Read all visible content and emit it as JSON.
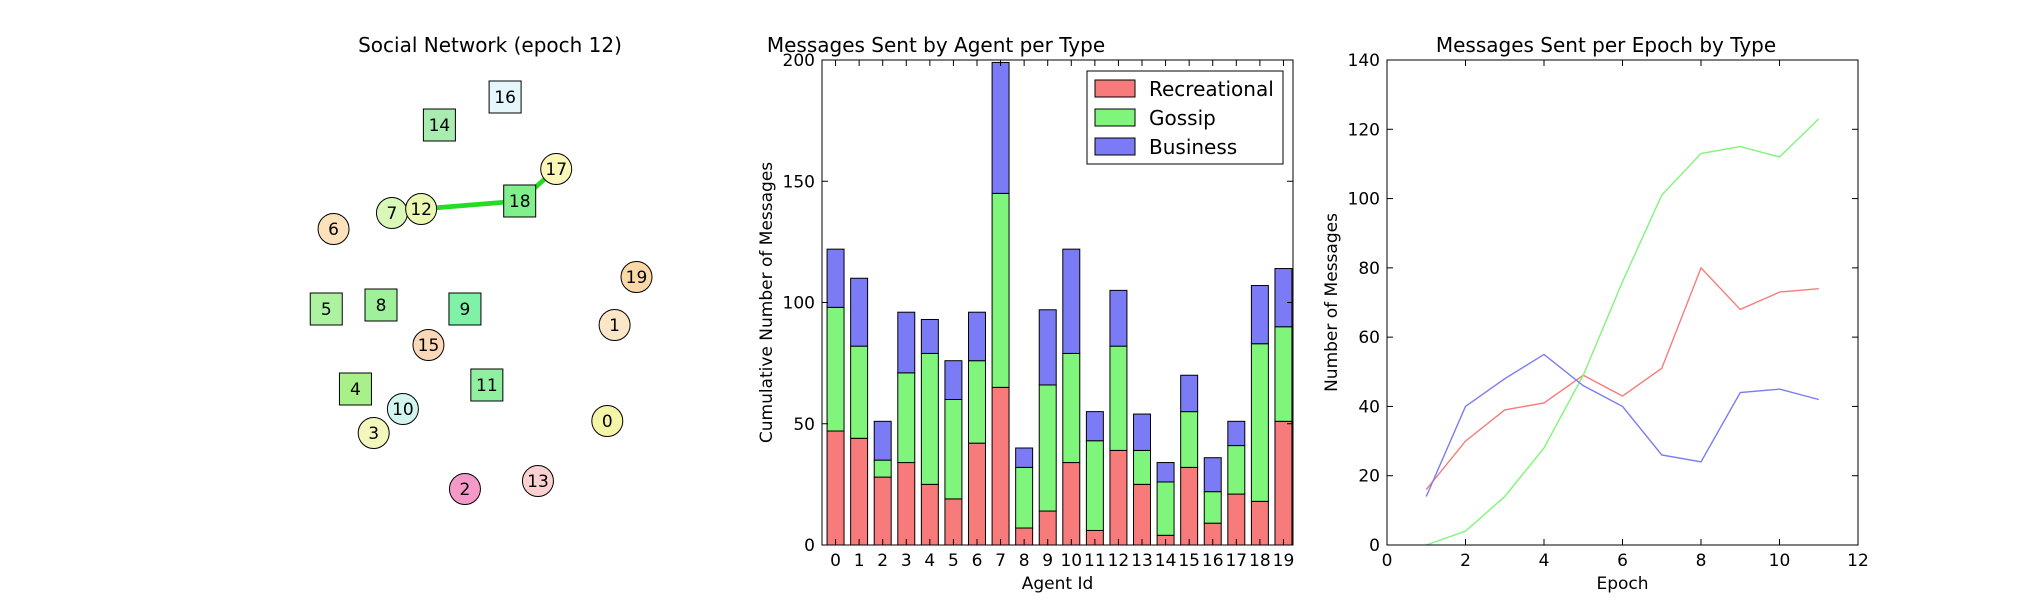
{
  "chart_data": [
    {
      "type": "network",
      "title": "Social Network (epoch 12)",
      "nodes": [
        {
          "id": 0,
          "label": "0",
          "shape": "circle",
          "color": "#f5f5a8",
          "x": 8.2,
          "y": 3.1
        },
        {
          "id": 1,
          "label": "1",
          "shape": "circle",
          "color": "#fbe6c8",
          "x": 8.4,
          "y": 5.5
        },
        {
          "id": 2,
          "label": "2",
          "shape": "circle",
          "color": "#f59ac8",
          "x": 4.3,
          "y": 1.4
        },
        {
          "id": 3,
          "label": "3",
          "shape": "circle",
          "color": "#f3f7be",
          "x": 1.8,
          "y": 2.8
        },
        {
          "id": 4,
          "label": "4",
          "shape": "square",
          "color": "#a8f08a",
          "x": 1.3,
          "y": 3.9
        },
        {
          "id": 5,
          "label": "5",
          "shape": "square",
          "color": "#acf2a0",
          "x": 0.5,
          "y": 5.9
        },
        {
          "id": 6,
          "label": "6",
          "shape": "circle",
          "color": "#fbe1bc",
          "x": 0.7,
          "y": 7.9
        },
        {
          "id": 7,
          "label": "7",
          "shape": "circle",
          "color": "#d8f7b8",
          "x": 2.3,
          "y": 8.3
        },
        {
          "id": 8,
          "label": "8",
          "shape": "square",
          "color": "#9ef09a",
          "x": 2.0,
          "y": 6.0
        },
        {
          "id": 9,
          "label": "9",
          "shape": "square",
          "color": "#80f2a8",
          "x": 4.3,
          "y": 5.9
        },
        {
          "id": 10,
          "label": "10",
          "shape": "circle",
          "color": "#d2f5f0",
          "x": 2.6,
          "y": 3.4
        },
        {
          "id": 11,
          "label": "11",
          "shape": "square",
          "color": "#90f0a0",
          "x": 4.9,
          "y": 4.0
        },
        {
          "id": 12,
          "label": "12",
          "shape": "circle",
          "color": "#eaf7b0",
          "x": 3.1,
          "y": 8.4
        },
        {
          "id": 13,
          "label": "13",
          "shape": "circle",
          "color": "#fbd0d0",
          "x": 6.3,
          "y": 1.6
        },
        {
          "id": 14,
          "label": "14",
          "shape": "square",
          "color": "#a8ecb0",
          "x": 3.6,
          "y": 10.5
        },
        {
          "id": 15,
          "label": "15",
          "shape": "circle",
          "color": "#fbd8b8",
          "x": 3.3,
          "y": 5.0
        },
        {
          "id": 16,
          "label": "16",
          "shape": "square",
          "color": "#e6f7fb",
          "x": 5.4,
          "y": 11.2
        },
        {
          "id": 17,
          "label": "17",
          "shape": "circle",
          "color": "#fbf7b8",
          "x": 6.8,
          "y": 9.4
        },
        {
          "id": 18,
          "label": "18",
          "shape": "square",
          "color": "#80f08c",
          "x": 5.8,
          "y": 8.6
        },
        {
          "id": 19,
          "label": "19",
          "shape": "circle",
          "color": "#fbd8a8",
          "x": 9.0,
          "y": 6.7
        }
      ],
      "edges": [
        {
          "source": 12,
          "target": 18,
          "color": "#22dd22",
          "weight": 3
        },
        {
          "source": 18,
          "target": 17,
          "color": "#22dd22",
          "weight": 3
        }
      ]
    },
    {
      "type": "bar",
      "stacked": true,
      "title": "Messages Sent by Agent per Type",
      "xlabel": "Agent Id",
      "ylabel": "Cumulative Number of Messages",
      "ylim": [
        0,
        200
      ],
      "yticks": [
        0,
        50,
        100,
        150,
        200
      ],
      "grid": false,
      "legend": "top-right",
      "categories": [
        "0",
        "1",
        "2",
        "3",
        "4",
        "5",
        "6",
        "7",
        "8",
        "9",
        "10",
        "11",
        "12",
        "13",
        "14",
        "15",
        "16",
        "17",
        "18",
        "19"
      ],
      "series": [
        {
          "name": "Recreational",
          "color": "#f77b7b",
          "values": [
            47,
            44,
            28,
            34,
            25,
            19,
            42,
            65,
            7,
            14,
            34,
            6,
            39,
            25,
            4,
            32,
            9,
            21,
            18,
            51
          ]
        },
        {
          "name": "Gossip",
          "color": "#80f57b",
          "values": [
            51,
            38,
            7,
            37,
            54,
            41,
            34,
            80,
            25,
            52,
            45,
            37,
            43,
            14,
            22,
            23,
            13,
            20,
            65,
            39
          ]
        },
        {
          "name": "Business",
          "color": "#7b7bf5",
          "values": [
            24,
            28,
            16,
            25,
            14,
            16,
            20,
            54,
            8,
            31,
            43,
            12,
            23,
            15,
            8,
            15,
            14,
            10,
            24,
            24
          ]
        }
      ]
    },
    {
      "type": "line",
      "title": "Messages Sent per Epoch by Type",
      "xlabel": "Epoch",
      "ylabel": "Number of Messages",
      "xlim": [
        0,
        12
      ],
      "ylim": [
        0,
        140
      ],
      "xticks": [
        0,
        2,
        4,
        6,
        8,
        10,
        12
      ],
      "yticks": [
        0,
        20,
        40,
        60,
        80,
        100,
        120,
        140
      ],
      "grid": false,
      "x": [
        1,
        2,
        3,
        4,
        5,
        6,
        7,
        8,
        9,
        10,
        11
      ],
      "series": [
        {
          "color": "#f77b7b",
          "values": [
            16,
            30,
            39,
            41,
            49,
            43,
            51,
            80,
            68,
            73,
            74
          ]
        },
        {
          "color": "#80f57b",
          "values": [
            0,
            4,
            14,
            28,
            49,
            76,
            101,
            113,
            115,
            112,
            123
          ]
        },
        {
          "color": "#7b7bf5",
          "values": [
            14,
            40,
            48,
            55,
            46,
            40,
            26,
            24,
            44,
            45,
            42
          ]
        }
      ]
    }
  ]
}
